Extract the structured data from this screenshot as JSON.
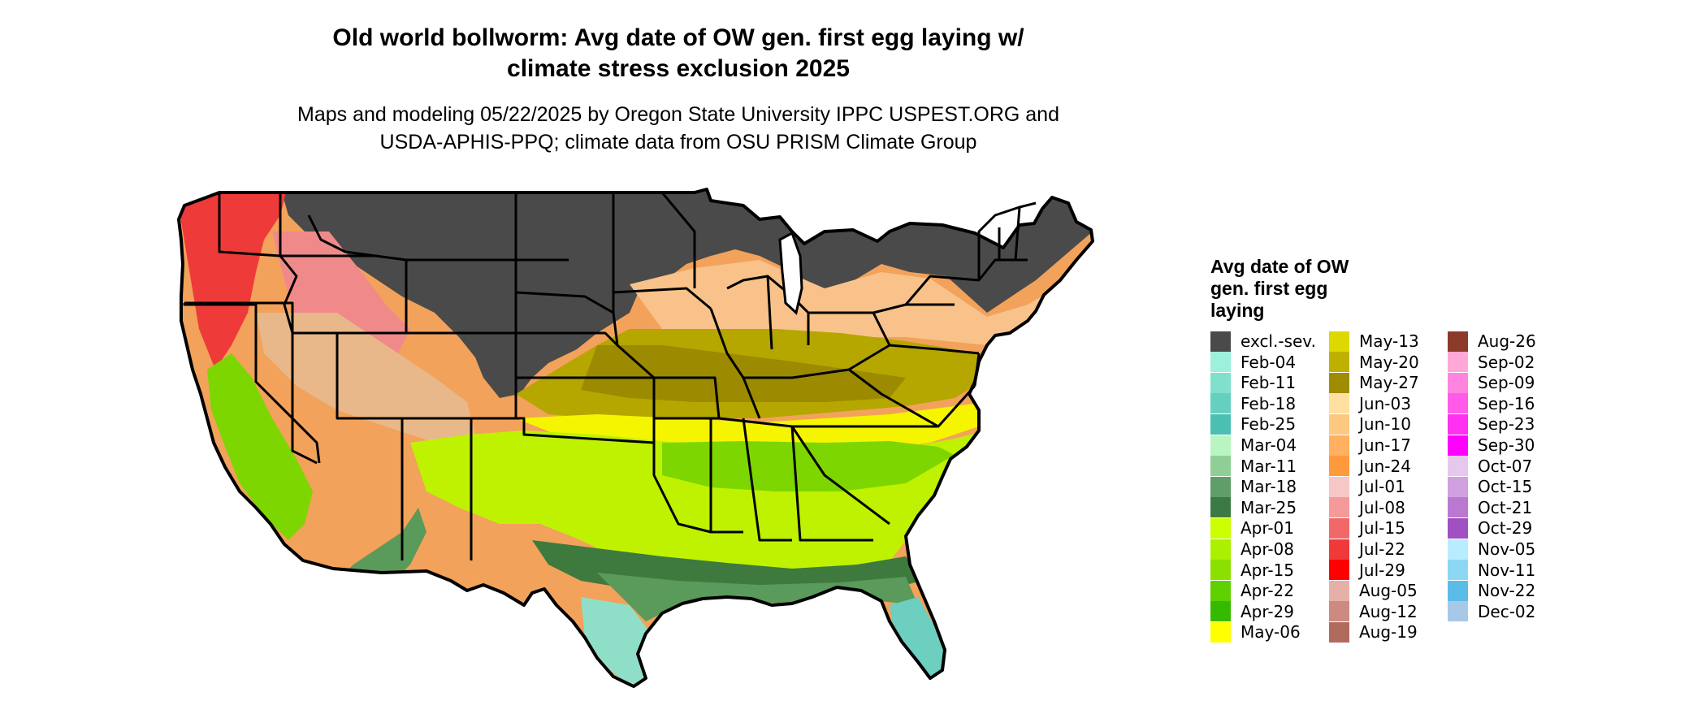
{
  "title_line1": "Old world bollworm: Avg date of OW gen. first egg laying w/",
  "title_line2": "climate stress exclusion 2025",
  "subtitle_line1": "Maps and modeling 05/22/2025 by Oregon State University IPPC USPEST.ORG and",
  "subtitle_line2": "USDA-APHIS-PPQ; climate data from OSU PRISM Climate Group",
  "map": {
    "boundary_color": "#000000",
    "colors": {
      "excluded": "#4a4a4a",
      "orange": "#f2a25a",
      "light_orange": "#f8c28a",
      "tan": "#e8b88a",
      "red": "#ef3a3a",
      "pink": "#f08a8a",
      "yellow": "#f5f500",
      "olive": "#b5a600",
      "dark_olive": "#9c8a00",
      "lime": "#bff200",
      "green": "#7ed600",
      "dark_green": "#3e7a3e",
      "mid_green": "#5a9a5a",
      "aqua": "#8fdfc8",
      "teal": "#6ccfbf"
    }
  },
  "legend": {
    "title_line1": "Avg date of OW",
    "title_line2": "gen. first egg",
    "title_line3": "laying",
    "items": [
      {
        "label": "excl.-sev.",
        "color": "#4a4a4a"
      },
      {
        "label": "Feb-04",
        "color": "#9cf0dc"
      },
      {
        "label": "Feb-11",
        "color": "#7fe0cc"
      },
      {
        "label": "Feb-18",
        "color": "#66d0c0"
      },
      {
        "label": "Feb-25",
        "color": "#4cbfb3"
      },
      {
        "label": "Mar-04",
        "color": "#b8f5c0"
      },
      {
        "label": "Mar-11",
        "color": "#8fcf96"
      },
      {
        "label": "Mar-18",
        "color": "#5f9e66"
      },
      {
        "label": "Mar-25",
        "color": "#3c7a43"
      },
      {
        "label": "Apr-01",
        "color": "#ccff00"
      },
      {
        "label": "Apr-08",
        "color": "#aaf000"
      },
      {
        "label": "Apr-15",
        "color": "#8ce000"
      },
      {
        "label": "Apr-22",
        "color": "#5fd000"
      },
      {
        "label": "Apr-29",
        "color": "#34bb00"
      },
      {
        "label": "May-06",
        "color": "#ffff00"
      },
      {
        "label": "May-13",
        "color": "#ddd800"
      },
      {
        "label": "May-20",
        "color": "#bfb000"
      },
      {
        "label": "May-27",
        "color": "#a08c00"
      },
      {
        "label": "Jun-03",
        "color": "#ffe0a0"
      },
      {
        "label": "Jun-10",
        "color": "#ffc880"
      },
      {
        "label": "Jun-17",
        "color": "#ffb060"
      },
      {
        "label": "Jun-24",
        "color": "#ff9a3c"
      },
      {
        "label": "Jul-01",
        "color": "#f7c6c6"
      },
      {
        "label": "Jul-08",
        "color": "#f49a9a"
      },
      {
        "label": "Jul-15",
        "color": "#f06868"
      },
      {
        "label": "Jul-22",
        "color": "#f03a3a"
      },
      {
        "label": "Jul-29",
        "color": "#ff0000"
      },
      {
        "label": "Aug-05",
        "color": "#e6b0a8"
      },
      {
        "label": "Aug-12",
        "color": "#cc8a80"
      },
      {
        "label": "Aug-19",
        "color": "#b06a5e"
      },
      {
        "label": "Aug-26",
        "color": "#8c3a2a"
      },
      {
        "label": "Sep-02",
        "color": "#ffa8d8"
      },
      {
        "label": "Sep-09",
        "color": "#ff84e0"
      },
      {
        "label": "Sep-16",
        "color": "#ff5ae8"
      },
      {
        "label": "Sep-23",
        "color": "#ff30f0"
      },
      {
        "label": "Sep-30",
        "color": "#ff00ff"
      },
      {
        "label": "Oct-07",
        "color": "#e6c8ec"
      },
      {
        "label": "Oct-15",
        "color": "#d0a0e0"
      },
      {
        "label": "Oct-21",
        "color": "#bb78d0"
      },
      {
        "label": "Oct-29",
        "color": "#a050c0"
      },
      {
        "label": "Nov-05",
        "color": "#b8ecff"
      },
      {
        "label": "Nov-11",
        "color": "#8cd8f4"
      },
      {
        "label": "Nov-22",
        "color": "#5cbce8"
      },
      {
        "label": "Dec-02",
        "color": "#a8c8e8"
      }
    ]
  }
}
